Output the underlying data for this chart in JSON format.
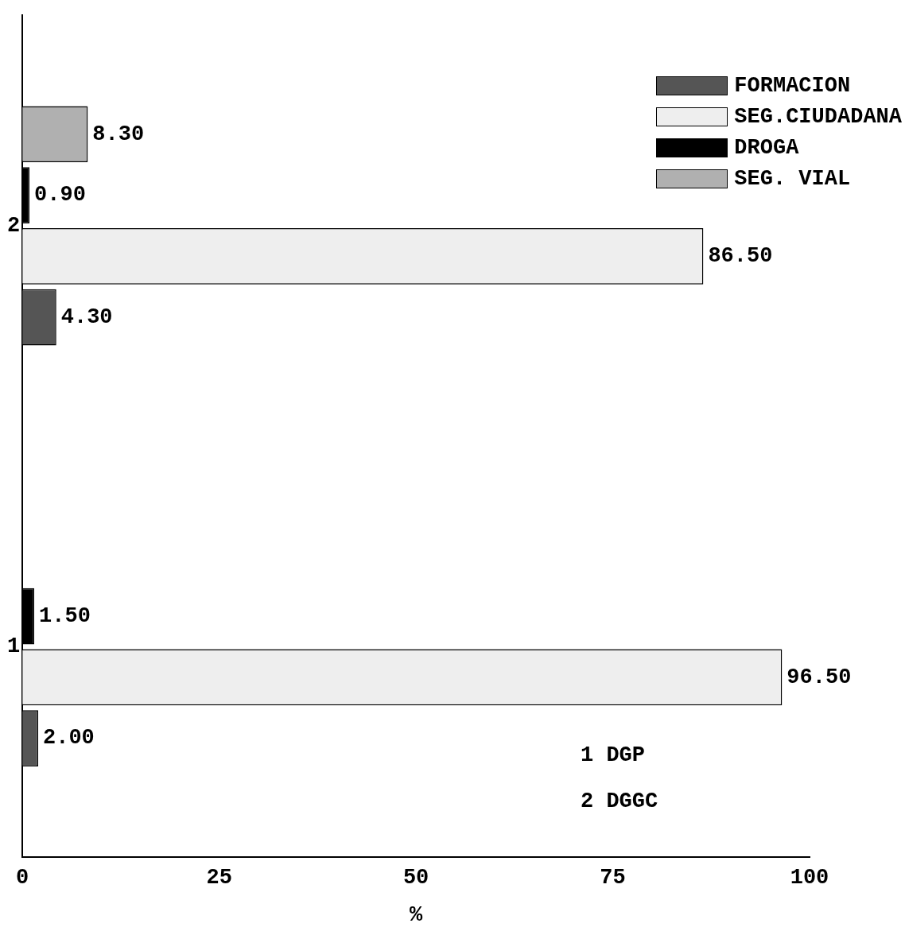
{
  "chart_data": {
    "type": "bar",
    "orientation": "horizontal",
    "xlabel": "%",
    "categories": [
      "2",
      "1"
    ],
    "series": [
      {
        "name": "FORMACION",
        "color": "#555555",
        "values": [
          4.3,
          2.0
        ],
        "value_labels": [
          "4.30",
          "2.00"
        ]
      },
      {
        "name": "SEG.CIUDADANA",
        "color": "#eeeeee",
        "values": [
          86.5,
          96.5
        ],
        "value_labels": [
          "86.50",
          "96.50"
        ]
      },
      {
        "name": "DROGA",
        "color": "#000000",
        "values": [
          0.9,
          1.5
        ],
        "value_labels": [
          "0.90",
          "1.50"
        ]
      },
      {
        "name": "SEG. VIAL",
        "color": "#b0b0b0",
        "values": [
          8.3,
          null
        ],
        "value_labels": [
          "8.30",
          null
        ]
      }
    ],
    "xlim": [
      0,
      100
    ],
    "xticks": [
      0,
      25,
      50,
      75,
      100
    ],
    "grid": false,
    "legend": "top right",
    "annotations": [
      "1 DGP",
      "2 DGGC"
    ]
  }
}
